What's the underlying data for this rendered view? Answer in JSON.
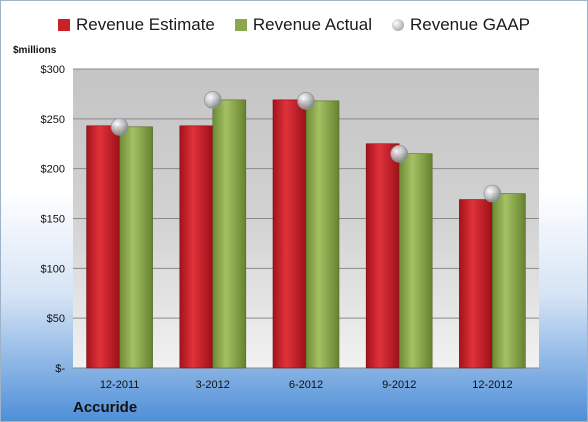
{
  "chart_data": {
    "type": "bar",
    "title": "",
    "unit_label": "$millions",
    "company": "Accuride",
    "categories": [
      "12-2011",
      "3-2012",
      "6-2012",
      "9-2012",
      "12-2012"
    ],
    "series": [
      {
        "name": "Revenue Estimate",
        "kind": "bar",
        "values": [
          243,
          243,
          269,
          225,
          169
        ]
      },
      {
        "name": "Revenue Actual",
        "kind": "bar",
        "values": [
          242,
          269,
          268,
          215,
          175
        ]
      },
      {
        "name": "Revenue GAAP",
        "kind": "marker",
        "values": [
          242,
          269,
          268,
          215,
          175
        ]
      }
    ],
    "ylim": [
      0,
      300
    ],
    "yticks": [
      0,
      50,
      100,
      150,
      200,
      250,
      300
    ],
    "ytick_labels": [
      "$-",
      "$50",
      "$100",
      "$150",
      "$200",
      "$250",
      "$300"
    ],
    "grid": true,
    "legend_position": "top",
    "colors": {
      "estimate": "#c9202a",
      "actual": "#8aa84a",
      "gaap": "#b0b4ba"
    }
  }
}
